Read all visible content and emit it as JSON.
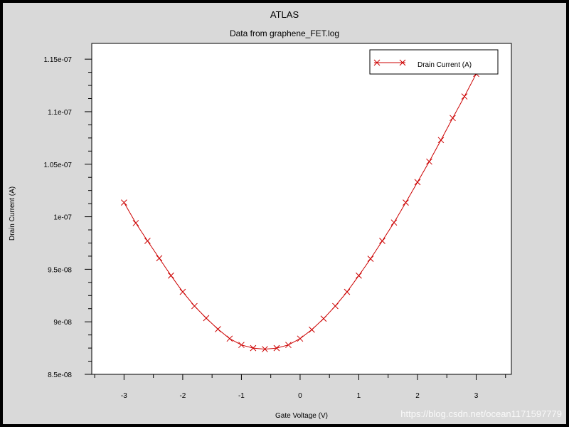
{
  "chart_data": {
    "type": "line",
    "title": "ATLAS",
    "subtitle": "Data from graphene_FET.log",
    "xlabel": "Gate Voltage (V)",
    "ylabel": "Drain Current (A)",
    "xlim": [
      -3.55,
      3.6
    ],
    "ylim": [
      8.5e-08,
      1.165e-07
    ],
    "x_ticks": [
      -3,
      -2,
      -1,
      0,
      1,
      2,
      3
    ],
    "x_tick_labels": [
      "-3",
      "-2",
      "-1",
      "0",
      "1",
      "2",
      "3"
    ],
    "y_ticks": [
      8.5e-08,
      9e-08,
      9.5e-08,
      1e-07,
      1.05e-07,
      1.1e-07,
      1.15e-07
    ],
    "y_tick_labels": [
      "8.5e-08",
      "9e-08",
      "9.5e-08",
      "1e-07",
      "1.05e-07",
      "1.1e-07",
      "1.15e-07"
    ],
    "grid": false,
    "legend_position": "top-right",
    "series": [
      {
        "name": "Drain Current (A)",
        "color": "#cc0000",
        "marker": "x",
        "x": [
          -3.0,
          -2.8,
          -2.6,
          -2.4,
          -2.2,
          -2.0,
          -1.8,
          -1.6,
          -1.4,
          -1.2,
          -1.0,
          -0.8,
          -0.6,
          -0.4,
          -0.2,
          0.0,
          0.2,
          0.4,
          0.6,
          0.8,
          1.0,
          1.2,
          1.4,
          1.6,
          1.8,
          2.0,
          2.2,
          2.4,
          2.6,
          2.8,
          3.0
        ],
        "y": [
          1.0135e-07,
          9.94e-08,
          9.77e-08,
          9.605e-08,
          9.44e-08,
          9.285e-08,
          9.15e-08,
          9.035e-08,
          8.93e-08,
          8.84e-08,
          8.78e-08,
          8.75e-08,
          8.74e-08,
          8.75e-08,
          8.78e-08,
          8.84e-08,
          8.925e-08,
          9.03e-08,
          9.15e-08,
          9.285e-08,
          9.44e-08,
          9.6e-08,
          9.77e-08,
          9.945e-08,
          1.0135e-07,
          1.033e-07,
          1.0525e-07,
          1.073e-07,
          1.094e-07,
          1.1145e-07,
          1.136e-07
        ]
      }
    ]
  },
  "watermark": "https://blog.csdn.net/ocean1171597779"
}
